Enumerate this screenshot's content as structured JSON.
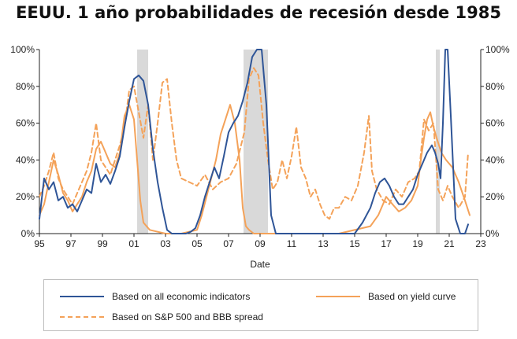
{
  "title": "EEUU. 1 año probabilidades de recesión desde 1985",
  "chart_data": {
    "type": "line",
    "title": "EEUU. 1 año probabilidades de recesión desde 1985",
    "xlabel": "Date",
    "ylabel_left": "",
    "ylabel_right": "",
    "xlim": [
      1995,
      2023
    ],
    "ylim": [
      0,
      100
    ],
    "x_tick_labels": [
      "95",
      "97",
      "99",
      "01",
      "03",
      "05",
      "07",
      "09",
      "11",
      "13",
      "15",
      "17",
      "19",
      "21",
      "23"
    ],
    "x_tick_values": [
      1995,
      1997,
      1999,
      2001,
      2003,
      2005,
      2007,
      2009,
      2011,
      2013,
      2015,
      2017,
      2019,
      2021,
      2023
    ],
    "y_tick_labels_left": [
      "0%",
      "20%",
      "40%",
      "60%",
      "80%",
      "100%"
    ],
    "y_tick_labels_right": [
      "0%",
      "20%",
      "40%",
      "60%",
      "80%",
      "100%"
    ],
    "y_tick_values": [
      0,
      20,
      40,
      60,
      80,
      100
    ],
    "grid": false,
    "legend_position": "bottom",
    "recession_shading": [
      {
        "start": 2001.2,
        "end": 2001.9
      },
      {
        "start": 2007.95,
        "end": 2009.5
      },
      {
        "start": 2020.15,
        "end": 2020.4
      }
    ],
    "series": [
      {
        "name": "Based on all economic indicators",
        "color": "#2f5597",
        "dash": "solid",
        "x": [
          1995,
          1995.3,
          1995.6,
          1995.9,
          1996.2,
          1996.5,
          1996.8,
          1997.1,
          1997.4,
          1997.7,
          1998.0,
          1998.3,
          1998.6,
          1998.9,
          1999.2,
          1999.5,
          1999.8,
          2000.1,
          2000.4,
          2000.7,
          2001.0,
          2001.3,
          2001.6,
          2001.9,
          2002.2,
          2002.5,
          2002.8,
          2003.1,
          2003.4,
          2003.7,
          2004.0,
          2004.3,
          2004.6,
          2004.9,
          2005.2,
          2005.5,
          2005.8,
          2006.1,
          2006.4,
          2006.7,
          2007.0,
          2007.3,
          2007.6,
          2007.9,
          2008.2,
          2008.5,
          2008.8,
          2009.1,
          2009.4,
          2009.7,
          2010.0,
          2010.5,
          2011.0,
          2012.0,
          2013.0,
          2013.5,
          2014.0,
          2014.5,
          2015.0,
          2015.5,
          2016.0,
          2016.3,
          2016.6,
          2016.9,
          2017.2,
          2017.5,
          2017.8,
          2018.1,
          2018.4,
          2018.7,
          2019.0,
          2019.3,
          2019.6,
          2019.9,
          2020.1,
          2020.3,
          2020.45,
          2020.6,
          2020.75,
          2020.9,
          2021.1,
          2021.4,
          2021.7,
          2022.0,
          2022.2
        ],
        "values": [
          8,
          30,
          24,
          28,
          18,
          20,
          14,
          16,
          12,
          18,
          24,
          22,
          38,
          28,
          32,
          27,
          34,
          42,
          58,
          72,
          84,
          86,
          83,
          70,
          46,
          28,
          14,
          2,
          0,
          0,
          0,
          0,
          1,
          3,
          10,
          20,
          28,
          36,
          30,
          42,
          55,
          60,
          64,
          72,
          82,
          96,
          100,
          100,
          70,
          10,
          0,
          0,
          0,
          0,
          0,
          0,
          0,
          0,
          0,
          6,
          14,
          22,
          28,
          30,
          26,
          20,
          16,
          16,
          20,
          24,
          32,
          38,
          44,
          48,
          44,
          38,
          30,
          60,
          100,
          100,
          64,
          8,
          0,
          0,
          5
        ]
      },
      {
        "name": "Based on yield curve",
        "color": "#f4a259",
        "dash": "solid",
        "x": [
          1995,
          1995.3,
          1995.6,
          1995.9,
          1996.2,
          1996.5,
          1996.8,
          1997.1,
          1997.4,
          1997.7,
          1998.0,
          1998.3,
          1998.6,
          1998.9,
          1999.2,
          1999.5,
          1999.8,
          2000.1,
          2000.4,
          2000.7,
          2001.0,
          2001.2,
          2001.4,
          2001.6,
          2002.0,
          2003.0,
          2004.0,
          2005.0,
          2005.3,
          2005.6,
          2005.9,
          2006.2,
          2006.5,
          2006.8,
          2007.1,
          2007.4,
          2007.7,
          2007.9,
          2008.1,
          2008.3,
          2008.6,
          2009.0,
          2010.0,
          2012.0,
          2014.0,
          2016.0,
          2016.5,
          2017.0,
          2017.4,
          2017.8,
          2018.2,
          2018.6,
          2019.0,
          2019.2,
          2019.4,
          2019.6,
          2019.8,
          2020.0,
          2020.2,
          2020.5,
          2020.8,
          2021.2,
          2021.6,
          2022.0,
          2022.3
        ],
        "values": [
          10,
          16,
          28,
          40,
          32,
          22,
          18,
          12,
          16,
          20,
          28,
          34,
          46,
          50,
          44,
          38,
          36,
          44,
          64,
          70,
          62,
          40,
          18,
          6,
          2,
          0,
          0,
          2,
          10,
          20,
          30,
          40,
          54,
          62,
          70,
          60,
          40,
          14,
          4,
          2,
          0,
          0,
          0,
          0,
          0,
          4,
          10,
          20,
          16,
          12,
          14,
          18,
          26,
          40,
          52,
          62,
          66,
          58,
          52,
          44,
          40,
          36,
          28,
          18,
          10
        ]
      },
      {
        "name": "Based on S&P 500 and BBB spread",
        "color": "#f4a259",
        "dash": "dashed",
        "x": [
          1995,
          1995.3,
          1995.6,
          1995.9,
          1996.2,
          1996.5,
          1996.8,
          1997.1,
          1997.4,
          1997.7,
          1998.0,
          1998.3,
          1998.6,
          1998.9,
          1999.2,
          1999.5,
          1999.8,
          2000.1,
          2000.4,
          2000.7,
          2001.0,
          2001.3,
          2001.6,
          2001.9,
          2002.2,
          2002.5,
          2002.8,
          2003.1,
          2003.4,
          2003.7,
          2004.0,
          2004.5,
          2005.0,
          2005.5,
          2006.0,
          2006.5,
          2007.0,
          2007.5,
          2008.0,
          2008.3,
          2008.6,
          2008.9,
          2009.2,
          2009.5,
          2009.8,
          2010.1,
          2010.4,
          2010.7,
          2011.0,
          2011.3,
          2011.6,
          2011.9,
          2012.2,
          2012.5,
          2012.8,
          2013.1,
          2013.4,
          2013.7,
          2014.0,
          2014.4,
          2014.8,
          2015.2,
          2015.6,
          2015.9,
          2016.1,
          2016.4,
          2016.8,
          2017.2,
          2017.6,
          2018.0,
          2018.4,
          2018.8,
          2019.1,
          2019.4,
          2019.7,
          2020.0,
          2020.3,
          2020.6,
          2020.9,
          2021.2,
          2021.6,
          2022.0,
          2022.2
        ],
        "values": [
          20,
          26,
          34,
          44,
          30,
          24,
          20,
          16,
          22,
          28,
          34,
          44,
          60,
          40,
          36,
          32,
          40,
          48,
          58,
          78,
          80,
          66,
          52,
          70,
          40,
          60,
          82,
          84,
          60,
          40,
          30,
          28,
          26,
          32,
          24,
          28,
          30,
          38,
          55,
          84,
          90,
          86,
          60,
          40,
          24,
          28,
          40,
          30,
          42,
          58,
          36,
          30,
          20,
          24,
          16,
          10,
          8,
          14,
          14,
          20,
          18,
          26,
          44,
          64,
          34,
          24,
          18,
          16,
          24,
          20,
          28,
          30,
          34,
          62,
          56,
          60,
          24,
          18,
          26,
          20,
          14,
          20,
          44
        ]
      }
    ]
  },
  "legend": {
    "items": [
      {
        "label": "Based on all economic indicators"
      },
      {
        "label": "Based on yield curve"
      },
      {
        "label": "Based on S&P 500 and BBB spread"
      }
    ]
  }
}
